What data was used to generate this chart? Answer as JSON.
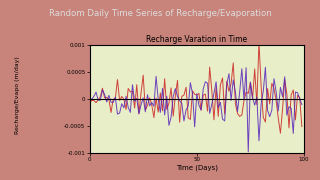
{
  "title_outer": "Random Daily Time Series of Recharge/Evaporation",
  "title_inner": "Recharge Varation in Time",
  "xlabel": "Time (Days)",
  "ylabel": "Recharge/Evapo (m/day)",
  "xlim": [
    0,
    100
  ],
  "ylim": [
    -0.001,
    0.001
  ],
  "yticks": [
    -0.001,
    -0.0005,
    0,
    0.0005,
    0.001
  ],
  "ytick_labels": [
    "-0.001",
    "-0.0005",
    "0",
    "0.0005",
    "0.001"
  ],
  "xticks": [
    0,
    50,
    100
  ],
  "outer_bg": "#c8837a",
  "title_strip_bg": "#1a1a1a",
  "inner_bg": "#e8eec8",
  "line1_color": "#5522bb",
  "line2_color": "#cc2222",
  "seed": 42,
  "n_days": 100,
  "amplitude_max": 0.00045,
  "amplitude_min": 5e-05
}
